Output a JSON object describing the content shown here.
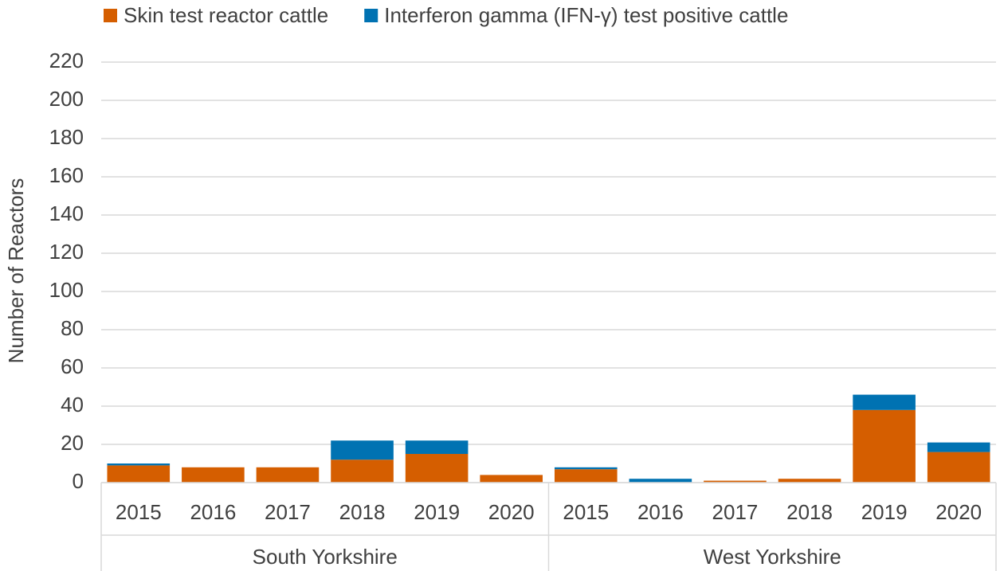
{
  "chart_data": {
    "type": "stacked_bar",
    "y_label": "Number of Reactors",
    "groups": [
      "South Yorkshire",
      "West Yorkshire"
    ],
    "categories": [
      "2015",
      "2016",
      "2017",
      "2018",
      "2019",
      "2020",
      "2015",
      "2016",
      "2017",
      "2018",
      "2019",
      "2020"
    ],
    "series": [
      {
        "name": "Skin test reactor cattle",
        "color": "#d55e00",
        "values": [
          9,
          8,
          8,
          12,
          15,
          4,
          7,
          0,
          1,
          2,
          38,
          16
        ]
      },
      {
        "name": "Interferon gamma (IFN-γ) test positive cattle",
        "color": "#0072b2",
        "values": [
          1,
          0,
          0,
          10,
          7,
          0,
          1,
          2,
          0,
          0,
          8,
          5
        ]
      }
    ],
    "ylim": [
      0,
      220
    ],
    "yticks": [
      0,
      20,
      40,
      60,
      80,
      100,
      120,
      140,
      160,
      180,
      200,
      220
    ],
    "grid": true,
    "legend": "top"
  }
}
